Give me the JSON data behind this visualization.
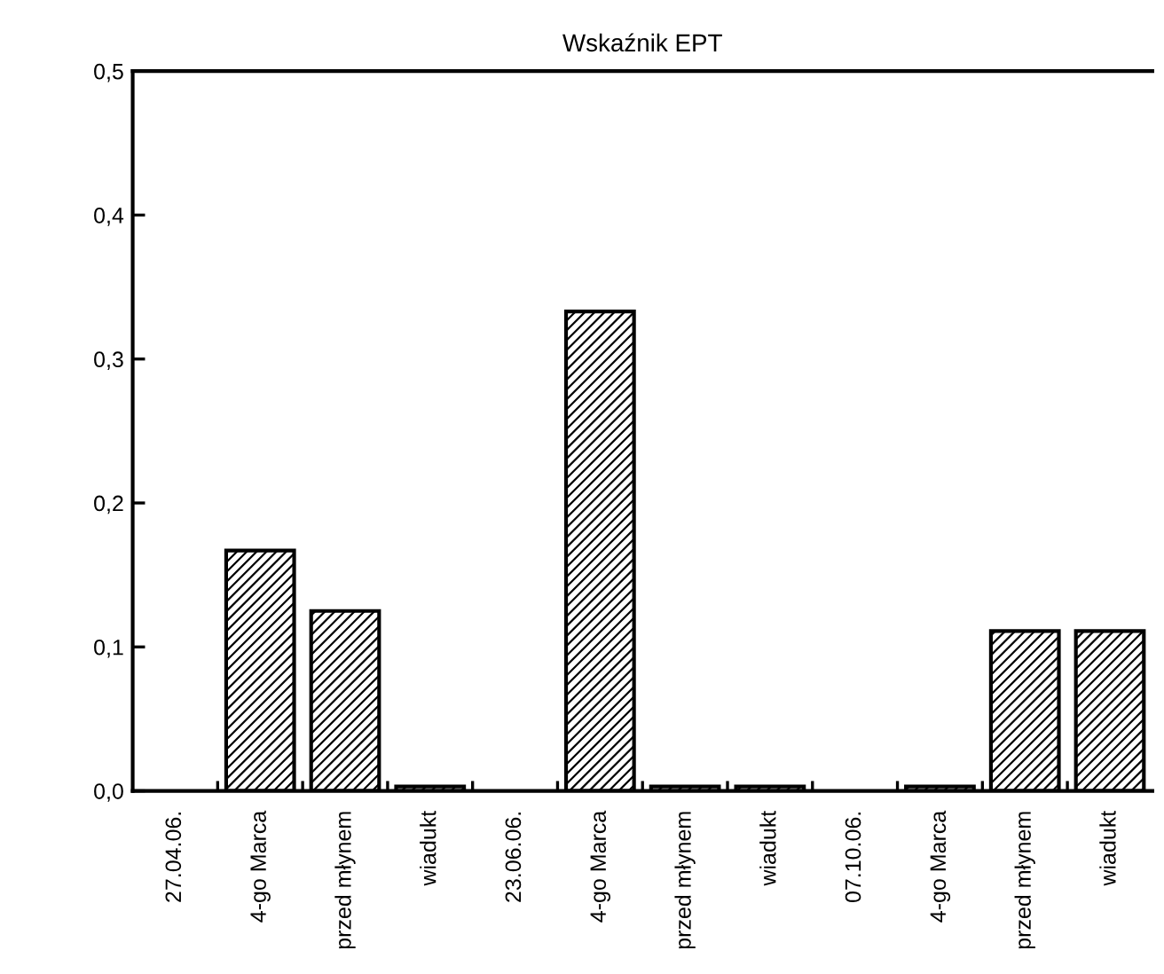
{
  "chart_data": {
    "type": "bar",
    "title": "Wskaźnik EPT",
    "categories": [
      "27.04.06.",
      "4-go Marca",
      "przed młynem",
      "wiadukt",
      "23.06.06.",
      "4-go Marca",
      "przed młynem",
      "wiadukt",
      "07.10.06.",
      "4-go Marca",
      "przed młynem",
      "wiadukt"
    ],
    "values": [
      null,
      0.167,
      0.125,
      0.003,
      null,
      0.333,
      0.003,
      0.003,
      null,
      0.003,
      0.111,
      0.111
    ],
    "color": "#000000",
    "ylim": [
      0,
      0.5
    ],
    "yticks": [
      {
        "value": 0,
        "label": "0,0"
      },
      {
        "value": 0.1,
        "label": "0,1"
      },
      {
        "value": 0.2,
        "label": "0,2"
      },
      {
        "value": 0.3,
        "label": "0,3"
      },
      {
        "value": 0.4,
        "label": "0,4"
      },
      {
        "value": 0.5,
        "label": "0,5"
      }
    ],
    "grid": false
  }
}
